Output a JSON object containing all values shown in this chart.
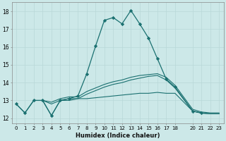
{
  "xlabel": "Humidex (Indice chaleur)",
  "xlim": [
    -0.5,
    23.5
  ],
  "ylim": [
    11.7,
    18.5
  ],
  "bg_color": "#cce8e8",
  "grid_color": "#b8d8d8",
  "line_color": "#1a7070",
  "xticks": [
    0,
    1,
    2,
    3,
    4,
    5,
    6,
    7,
    8,
    9,
    10,
    11,
    12,
    13,
    14,
    15,
    16,
    17,
    18,
    20,
    21,
    22,
    23
  ],
  "yticks": [
    12,
    13,
    14,
    15,
    16,
    17,
    18
  ],
  "line_peaked_x": [
    0,
    1,
    2,
    3,
    4,
    5,
    6,
    7,
    8,
    9,
    10,
    11,
    12,
    13,
    14,
    15,
    16,
    17,
    18,
    20,
    21
  ],
  "line_peaked_y": [
    12.8,
    12.3,
    13.0,
    13.0,
    12.15,
    13.0,
    13.1,
    13.25,
    14.5,
    16.05,
    17.5,
    17.65,
    17.3,
    18.05,
    17.3,
    16.5,
    15.35,
    14.2,
    13.75,
    12.4,
    12.3
  ],
  "line_flat1_x": [
    3,
    4,
    5,
    6,
    7,
    8,
    9,
    10,
    11,
    12,
    13,
    14,
    15,
    16,
    17,
    18,
    20,
    21,
    22,
    23
  ],
  "line_flat1_y": [
    13.0,
    12.9,
    13.1,
    13.2,
    13.2,
    13.5,
    13.7,
    13.9,
    14.05,
    14.15,
    14.3,
    14.4,
    14.45,
    14.5,
    14.3,
    13.85,
    12.5,
    12.35,
    12.3,
    12.3
  ],
  "line_flat2_x": [
    3,
    4,
    5,
    6,
    7,
    8,
    9,
    10,
    11,
    12,
    13,
    14,
    15,
    16,
    17,
    18,
    20,
    21,
    22,
    23
  ],
  "line_flat2_y": [
    13.0,
    12.8,
    13.0,
    13.1,
    13.1,
    13.35,
    13.55,
    13.75,
    13.9,
    14.0,
    14.15,
    14.25,
    14.35,
    14.4,
    14.15,
    13.7,
    12.4,
    12.28,
    12.25,
    12.25
  ],
  "line_bottom_x": [
    0,
    1,
    2,
    3,
    4,
    5,
    6,
    7,
    8,
    9,
    10,
    11,
    12,
    13,
    14,
    15,
    16,
    17,
    18,
    20,
    21,
    22,
    23
  ],
  "line_bottom_y": [
    12.8,
    12.3,
    13.0,
    13.0,
    12.15,
    13.0,
    13.0,
    13.1,
    13.1,
    13.15,
    13.2,
    13.25,
    13.3,
    13.35,
    13.4,
    13.4,
    13.45,
    13.4,
    13.4,
    12.4,
    12.3,
    12.25,
    12.25
  ]
}
